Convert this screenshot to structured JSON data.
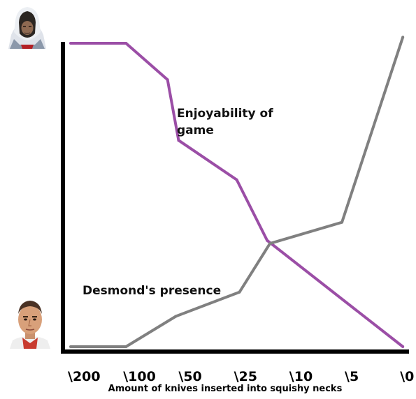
{
  "chart_data": {
    "type": "line",
    "title": "",
    "xlabel": "Amount of knives inserted into squishy necks",
    "ylabel": "",
    "categories": [
      "\\200",
      "\\100",
      "\\50",
      "\\25",
      "\\10",
      "\\5",
      "\\0"
    ],
    "ylim": [
      0,
      100
    ],
    "grid": false,
    "series": [
      {
        "name": "Enjoyability of game",
        "label_lines": [
          "Enjoyability of",
          "game"
        ],
        "color": "#9b4ea6",
        "points": [
          [
            0,
            100
          ],
          [
            1,
            100
          ],
          [
            1.75,
            88
          ],
          [
            1.95,
            68
          ],
          [
            3,
            55
          ],
          [
            3.55,
            35
          ],
          [
            6,
            0
          ]
        ]
      },
      {
        "name": "Desmond's presence",
        "label_lines": [
          "Desmond's presence"
        ],
        "color": "#808080",
        "points": [
          [
            0,
            0
          ],
          [
            1,
            0
          ],
          [
            1.9,
            10
          ],
          [
            3.05,
            18
          ],
          [
            3.6,
            34
          ],
          [
            4.9,
            41
          ],
          [
            6,
            102
          ]
        ]
      }
    ],
    "y_axis_icons": {
      "top": "hooded-assassin-face-icon",
      "bottom": "desmond-face-icon"
    }
  }
}
